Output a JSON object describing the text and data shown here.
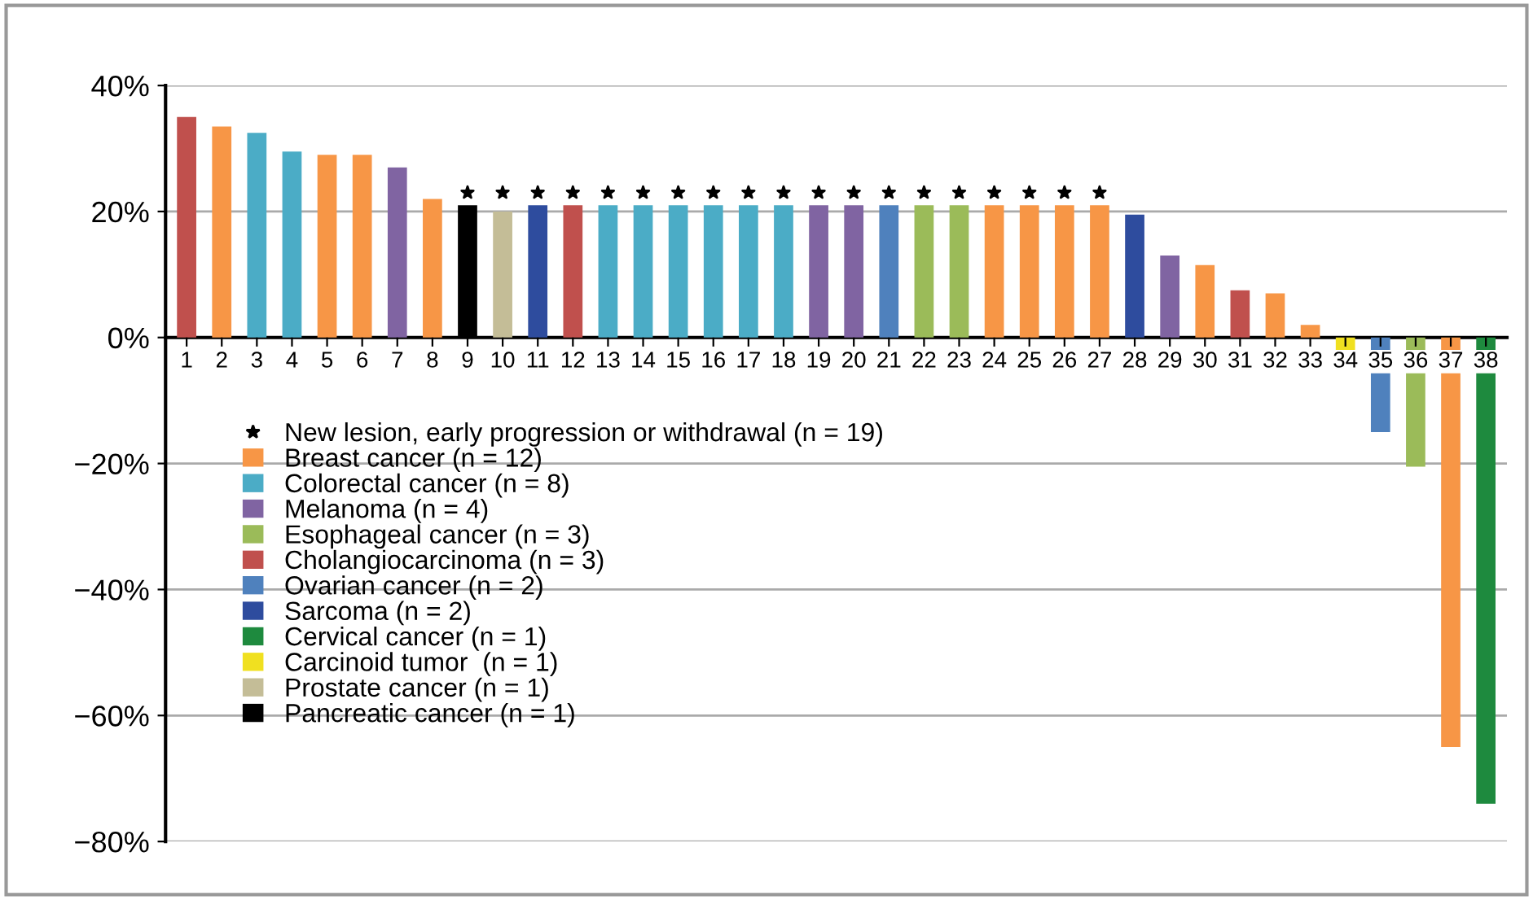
{
  "chart_data": {
    "type": "bar",
    "categories": [
      "1",
      "2",
      "3",
      "4",
      "5",
      "6",
      "7",
      "8",
      "9",
      "10",
      "11",
      "12",
      "13",
      "14",
      "15",
      "16",
      "17",
      "18",
      "19",
      "20",
      "21",
      "22",
      "23",
      "24",
      "25",
      "26",
      "27",
      "28",
      "29",
      "30",
      "31",
      "32",
      "33",
      "34",
      "35",
      "36",
      "37",
      "38"
    ],
    "series": [
      {
        "name": "New lesion, early progression or withdrawal (n = 19)",
        "type": "scatter",
        "marker": "star",
        "color": "#000000",
        "x": [
          "9",
          "10",
          "11",
          "12",
          "13",
          "14",
          "15",
          "16",
          "17",
          "18",
          "19",
          "20",
          "21",
          "22",
          "23",
          "24",
          "25",
          "26",
          "27"
        ],
        "values": [
          23,
          23,
          23,
          23,
          23,
          23,
          23,
          23,
          23,
          23,
          23,
          23,
          23,
          23,
          23,
          23,
          23,
          23,
          23
        ]
      },
      {
        "name": "Breast cancer (n = 12)",
        "color": "#f79646",
        "values": [
          null,
          33.5,
          null,
          null,
          29,
          29,
          null,
          22,
          null,
          null,
          null,
          null,
          null,
          null,
          null,
          null,
          null,
          null,
          null,
          null,
          null,
          null,
          null,
          21,
          21,
          21,
          21,
          null,
          null,
          11.5,
          null,
          7,
          2,
          null,
          null,
          null,
          -65,
          null
        ]
      },
      {
        "name": "Colorectal cancer (n = 8)",
        "color": "#4bacc6",
        "values": [
          null,
          null,
          32.5,
          29.5,
          null,
          null,
          null,
          null,
          null,
          null,
          null,
          null,
          21,
          21,
          21,
          21,
          21,
          21,
          null,
          null,
          null,
          null,
          null,
          null,
          null,
          null,
          null,
          null,
          null,
          null,
          null,
          null,
          null,
          null,
          null,
          null,
          null,
          null
        ]
      },
      {
        "name": "Melanoma (n = 4)",
        "color": "#8064a2",
        "values": [
          null,
          null,
          null,
          null,
          null,
          null,
          27,
          null,
          null,
          null,
          null,
          null,
          null,
          null,
          null,
          null,
          null,
          null,
          21,
          21,
          null,
          null,
          null,
          null,
          null,
          null,
          null,
          null,
          13,
          null,
          null,
          null,
          null,
          null,
          null,
          null,
          null,
          null
        ]
      },
      {
        "name": "Esophageal cancer (n = 3)",
        "color": "#9bbb59",
        "values": [
          null,
          null,
          null,
          null,
          null,
          null,
          null,
          null,
          null,
          null,
          null,
          null,
          null,
          null,
          null,
          null,
          null,
          null,
          null,
          null,
          null,
          21,
          21,
          null,
          null,
          null,
          null,
          null,
          null,
          null,
          null,
          null,
          null,
          null,
          null,
          -20.5,
          null,
          null
        ]
      },
      {
        "name": "Cholangiocarcinoma (n = 3)",
        "color": "#c0504d",
        "values": [
          35,
          null,
          null,
          null,
          null,
          null,
          null,
          null,
          null,
          null,
          null,
          21,
          null,
          null,
          null,
          null,
          null,
          null,
          null,
          null,
          null,
          null,
          null,
          null,
          null,
          null,
          null,
          null,
          null,
          null,
          7.5,
          null,
          null,
          null,
          null,
          null,
          null,
          null
        ]
      },
      {
        "name": "Ovarian cancer (n = 2)",
        "color": "#4f81bd",
        "values": [
          null,
          null,
          null,
          null,
          null,
          null,
          null,
          null,
          null,
          null,
          null,
          null,
          null,
          null,
          null,
          null,
          null,
          null,
          null,
          null,
          21,
          null,
          null,
          null,
          null,
          null,
          null,
          null,
          null,
          null,
          null,
          null,
          null,
          null,
          -15,
          null,
          null,
          null
        ]
      },
      {
        "name": "Sarcoma (n = 2)",
        "color": "#2e4c9e",
        "values": [
          null,
          null,
          null,
          null,
          null,
          null,
          null,
          null,
          null,
          null,
          21,
          null,
          null,
          null,
          null,
          null,
          null,
          null,
          null,
          null,
          null,
          null,
          null,
          null,
          null,
          null,
          null,
          19.5,
          null,
          null,
          null,
          null,
          null,
          null,
          null,
          null,
          null,
          null
        ]
      },
      {
        "name": "Cervical cancer (n = 1)",
        "color": "#1e8a3e",
        "values": [
          null,
          null,
          null,
          null,
          null,
          null,
          null,
          null,
          null,
          null,
          null,
          null,
          null,
          null,
          null,
          null,
          null,
          null,
          null,
          null,
          null,
          null,
          null,
          null,
          null,
          null,
          null,
          null,
          null,
          null,
          null,
          null,
          null,
          null,
          null,
          null,
          null,
          -74
        ]
      },
      {
        "name": "Carcinoid tumor  (n = 1)",
        "color": "#f0e020",
        "values": [
          null,
          null,
          null,
          null,
          null,
          null,
          null,
          null,
          null,
          null,
          null,
          null,
          null,
          null,
          null,
          null,
          null,
          null,
          null,
          null,
          null,
          null,
          null,
          null,
          null,
          null,
          null,
          null,
          null,
          null,
          null,
          null,
          null,
          -2,
          null,
          null,
          null,
          null
        ]
      },
      {
        "name": "Prostate cancer (n = 1)",
        "color": "#c4bd97",
        "values": [
          null,
          null,
          null,
          null,
          null,
          null,
          null,
          null,
          null,
          20,
          null,
          null,
          null,
          null,
          null,
          null,
          null,
          null,
          null,
          null,
          null,
          null,
          null,
          null,
          null,
          null,
          null,
          null,
          null,
          null,
          null,
          null,
          null,
          null,
          null,
          null,
          null,
          null
        ]
      },
      {
        "name": "Pancreatic cancer (n = 1)",
        "color": "#000000",
        "values": [
          null,
          null,
          null,
          null,
          null,
          null,
          null,
          null,
          21,
          null,
          null,
          null,
          null,
          null,
          null,
          null,
          null,
          null,
          null,
          null,
          null,
          null,
          null,
          null,
          null,
          null,
          null,
          null,
          null,
          null,
          null,
          null,
          null,
          null,
          null,
          null,
          null,
          null
        ]
      }
    ],
    "ylim": [
      -80,
      40
    ],
    "yticks": [
      {
        "value": -80,
        "label": "−80%"
      },
      {
        "value": -60,
        "label": "−60%"
      },
      {
        "value": -40,
        "label": "−40%"
      },
      {
        "value": -20,
        "label": "−20%"
      },
      {
        "value": 0,
        "label": "0%"
      },
      {
        "value": 20,
        "label": "20%"
      },
      {
        "value": 40,
        "label": "40%"
      }
    ],
    "grid": "y",
    "legend": "bottom left"
  }
}
